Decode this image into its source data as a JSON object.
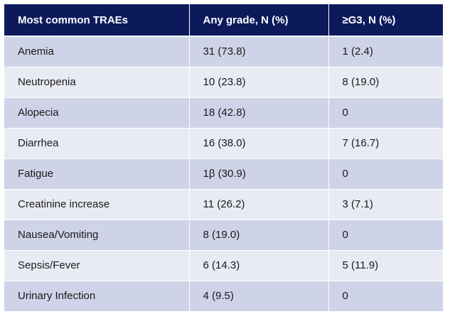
{
  "table": {
    "headers": [
      "Most common TRAEs",
      "Any grade, N (%)",
      "≥G3, N (%)"
    ],
    "rows": [
      [
        "Anemia",
        "31 (73.8)",
        "1 (2.4)"
      ],
      [
        "Neutropenia",
        "10 (23.8)",
        "8 (19.0)"
      ],
      [
        "Alopecia",
        "18 (42.8)",
        "0"
      ],
      [
        "Diarrhea",
        "16 (38.0)",
        "7 (16.7)"
      ],
      [
        "Fatigue",
        "1β (30.9)",
        "0"
      ],
      [
        "Creatinine increase",
        "11 (26.2)",
        "3 (7.1)"
      ],
      [
        "Nausea/Vomiting",
        "8 (19.0)",
        "0"
      ],
      [
        "Sepsis/Fever",
        "6 (14.3)",
        "5 (11.9)"
      ],
      [
        "Urinary Infection",
        "4 (9.5)",
        "0"
      ]
    ],
    "colors": {
      "header_bg": "#0c1a5c",
      "header_text": "#ffffff",
      "row_dark": "#cfd3e7",
      "row_light": "#e9ebf4"
    }
  }
}
